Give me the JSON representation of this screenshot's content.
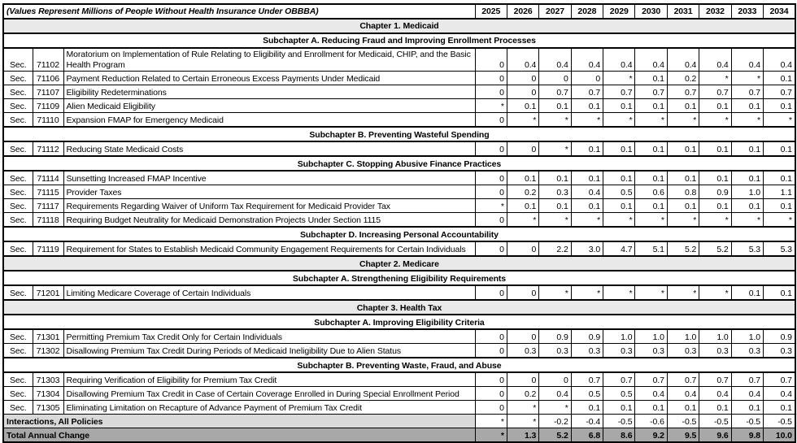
{
  "title": "(Values Represent Millions of People Without Health Insurance Under OBBBA)",
  "years": [
    "2025",
    "2026",
    "2027",
    "2028",
    "2029",
    "2030",
    "2031",
    "2032",
    "2033",
    "2034"
  ],
  "colors": {
    "chapter_row_bg": "#e9e9e9",
    "interactions_label_bg": "#d9d9d9",
    "total_row_bg": "#a8a8a8",
    "border": "#000000"
  },
  "rows": [
    {
      "type": "chapter",
      "label": "Chapter 1. Medicaid"
    },
    {
      "type": "subchapter",
      "label": "Subchapter A. Reducing Fraud and Improving Enrollment Processes"
    },
    {
      "type": "item",
      "sec": "Sec.",
      "num": "71102",
      "desc": "Moratorium on Implementation of Rule Relating to Eligibility and Enrollment for Medicaid, CHIP, and the Basic Health Program",
      "values": [
        "0",
        "0.4",
        "0.4",
        "0.4",
        "0.4",
        "0.4",
        "0.4",
        "0.4",
        "0.4",
        "0.4"
      ]
    },
    {
      "type": "item",
      "sec": "Sec.",
      "num": "71106",
      "desc": "Payment Reduction Related to Certain Erroneous Excess Payments Under Medicaid",
      "values": [
        "0",
        "0",
        "0",
        "0",
        "*",
        "0.1",
        "0.2",
        "*",
        "*",
        "0.1"
      ]
    },
    {
      "type": "item",
      "sec": "Sec.",
      "num": "71107",
      "desc": "Eligibility Redeterminations",
      "values": [
        "0",
        "0",
        "0.7",
        "0.7",
        "0.7",
        "0.7",
        "0.7",
        "0.7",
        "0.7",
        "0.7"
      ]
    },
    {
      "type": "item",
      "sec": "Sec.",
      "num": "71109",
      "desc": "Alien Medicaid Eligibility",
      "values": [
        "*",
        "0.1",
        "0.1",
        "0.1",
        "0.1",
        "0.1",
        "0.1",
        "0.1",
        "0.1",
        "0.1"
      ]
    },
    {
      "type": "item",
      "sec": "Sec.",
      "num": "71110",
      "desc": "Expansion FMAP for Emergency Medicaid",
      "values": [
        "0",
        "*",
        "*",
        "*",
        "*",
        "*",
        "*",
        "*",
        "*",
        "*"
      ]
    },
    {
      "type": "subchapter",
      "label": "Subchapter B. Preventing Wasteful Spending"
    },
    {
      "type": "item",
      "sec": "Sec.",
      "num": "71112",
      "desc": "Reducing State Medicaid Costs",
      "values": [
        "0",
        "0",
        "*",
        "0.1",
        "0.1",
        "0.1",
        "0.1",
        "0.1",
        "0.1",
        "0.1"
      ]
    },
    {
      "type": "subchapter",
      "label": "Subchapter C. Stopping Abusive Finance Practices"
    },
    {
      "type": "item",
      "sec": "Sec.",
      "num": "71114",
      "desc": "Sunsetting Increased FMAP Incentive",
      "values": [
        "0",
        "0.1",
        "0.1",
        "0.1",
        "0.1",
        "0.1",
        "0.1",
        "0.1",
        "0.1",
        "0.1"
      ]
    },
    {
      "type": "item",
      "sec": "Sec.",
      "num": "71115",
      "desc": "Provider Taxes",
      "values": [
        "0",
        "0.2",
        "0.3",
        "0.4",
        "0.5",
        "0.6",
        "0.8",
        "0.9",
        "1.0",
        "1.1"
      ]
    },
    {
      "type": "item",
      "sec": "Sec.",
      "num": "71117",
      "desc": "Requirements Regarding Waiver of Uniform Tax Requirement for Medicaid Provider Tax",
      "values": [
        "*",
        "0.1",
        "0.1",
        "0.1",
        "0.1",
        "0.1",
        "0.1",
        "0.1",
        "0.1",
        "0.1"
      ]
    },
    {
      "type": "item",
      "sec": "Sec.",
      "num": "71118",
      "desc": "Requiring Budget Neutrality for Medicaid Demonstration Projects Under Section 1115",
      "values": [
        "0",
        "*",
        "*",
        "*",
        "*",
        "*",
        "*",
        "*",
        "*",
        "*"
      ]
    },
    {
      "type": "subchapter",
      "label": "Subchapter D. Increasing Personal Accountability"
    },
    {
      "type": "item",
      "sec": "Sec.",
      "num": "71119",
      "desc": "Requirement for States to Establish Medicaid Community Engagement Requirements for Certain Individuals",
      "values": [
        "0",
        "0",
        "2.2",
        "3.0",
        "4.7",
        "5.1",
        "5.2",
        "5.2",
        "5.3",
        "5.3"
      ]
    },
    {
      "type": "chapter",
      "label": "Chapter 2. Medicare"
    },
    {
      "type": "subchapter",
      "label": "Subchapter A. Strengthening Eligibility Requirements"
    },
    {
      "type": "item",
      "sec": "Sec.",
      "num": "71201",
      "desc": "Limiting Medicare Coverage of Certain Individuals",
      "values": [
        "0",
        "0",
        "*",
        "*",
        "*",
        "*",
        "*",
        "*",
        "0.1",
        "0.1"
      ]
    },
    {
      "type": "chapter",
      "label": "Chapter 3. Health Tax"
    },
    {
      "type": "subchapter",
      "label": "Subchapter A. Improving Eligibility Criteria"
    },
    {
      "type": "item",
      "sec": "Sec.",
      "num": "71301",
      "desc": "Permitting Premium Tax Credit Only for Certain Individuals",
      "values": [
        "0",
        "0",
        "0.9",
        "0.9",
        "1.0",
        "1.0",
        "1.0",
        "1.0",
        "1.0",
        "0.9"
      ]
    },
    {
      "type": "item",
      "sec": "Sec.",
      "num": "71302",
      "desc": "Disallowing Premium Tax Credit During Periods of Medicaid Ineligibility Due to Alien Status",
      "values": [
        "0",
        "0.3",
        "0.3",
        "0.3",
        "0.3",
        "0.3",
        "0.3",
        "0.3",
        "0.3",
        "0.3"
      ]
    },
    {
      "type": "subchapter",
      "label": "Subchapter B. Preventing Waste, Fraud, and Abuse"
    },
    {
      "type": "item",
      "sec": "Sec.",
      "num": "71303",
      "desc": "Requiring Verification of Eligibility for Premium Tax Credit",
      "values": [
        "0",
        "0",
        "0",
        "0.7",
        "0.7",
        "0.7",
        "0.7",
        "0.7",
        "0.7",
        "0.7"
      ]
    },
    {
      "type": "item",
      "sec": "Sec.",
      "num": "71304",
      "desc": "Disallowing Premium Tax Credit in Case of Certain Coverage Enrolled in During Special Enrollment Period",
      "values": [
        "0",
        "0.2",
        "0.4",
        "0.5",
        "0.5",
        "0.4",
        "0.4",
        "0.4",
        "0.4",
        "0.4"
      ]
    },
    {
      "type": "item",
      "sec": "Sec.",
      "num": "71305",
      "desc": "Eliminating Limitation on Recapture of Advance Payment of Premium Tax Credit",
      "values": [
        "0",
        "*",
        "*",
        "0.1",
        "0.1",
        "0.1",
        "0.1",
        "0.1",
        "0.1",
        "0.1"
      ]
    },
    {
      "type": "interactions",
      "label": "Interactions, All Policies",
      "values": [
        "*",
        "*",
        "-0.2",
        "-0.4",
        "-0.5",
        "-0.6",
        "-0.5",
        "-0.5",
        "-0.5",
        "-0.5"
      ]
    },
    {
      "type": "total",
      "label": "Total Annual Change",
      "values": [
        "*",
        "1.3",
        "5.2",
        "6.8",
        "8.6",
        "9.2",
        "9.5",
        "9.6",
        "9.8",
        "10.0"
      ]
    }
  ]
}
